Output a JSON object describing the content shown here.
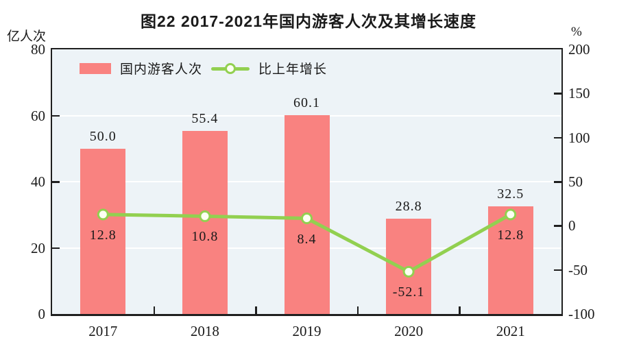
{
  "figure": {
    "title": "图22  2017-2021年国内游客人次及其增长速度"
  },
  "colors": {
    "bar": "#f98280",
    "line": "#92d050",
    "marker_fill": "#fdfff2",
    "plot_bg": "#edf3f7",
    "grid": "#ffffff",
    "axis": "#1f1f1f",
    "text": "#1a1a1a"
  },
  "chart_data": {
    "type": "bar+line",
    "title": "图22  2017-2021年国内游客人次及其增长速度",
    "categories": [
      "2017",
      "2018",
      "2019",
      "2020",
      "2021"
    ],
    "series": [
      {
        "name": "国内游客人次",
        "type": "bar",
        "axis": "left",
        "values": [
          50.0,
          55.4,
          60.1,
          28.8,
          32.5
        ],
        "labels": [
          "50.0",
          "55.4",
          "60.1",
          "28.8",
          "32.5"
        ],
        "color": "#f98280"
      },
      {
        "name": "比上年增长",
        "type": "line",
        "axis": "right",
        "values": [
          12.8,
          10.8,
          8.4,
          -52.1,
          12.8
        ],
        "labels": [
          "12.8",
          "10.8",
          "8.4",
          "-52.1",
          "12.8"
        ],
        "color": "#92d050"
      }
    ],
    "left_axis": {
      "unit": "亿人次",
      "range": [
        0,
        80
      ],
      "ticks": [
        0,
        20,
        40,
        60,
        80
      ]
    },
    "right_axis": {
      "unit": "%",
      "range": [
        -100,
        200
      ],
      "ticks": [
        -100,
        -50,
        0,
        50,
        100,
        150,
        200
      ]
    },
    "grid": "horizontal white lines at interior left-axis ticks",
    "legend_position": "top-left inside plot"
  }
}
